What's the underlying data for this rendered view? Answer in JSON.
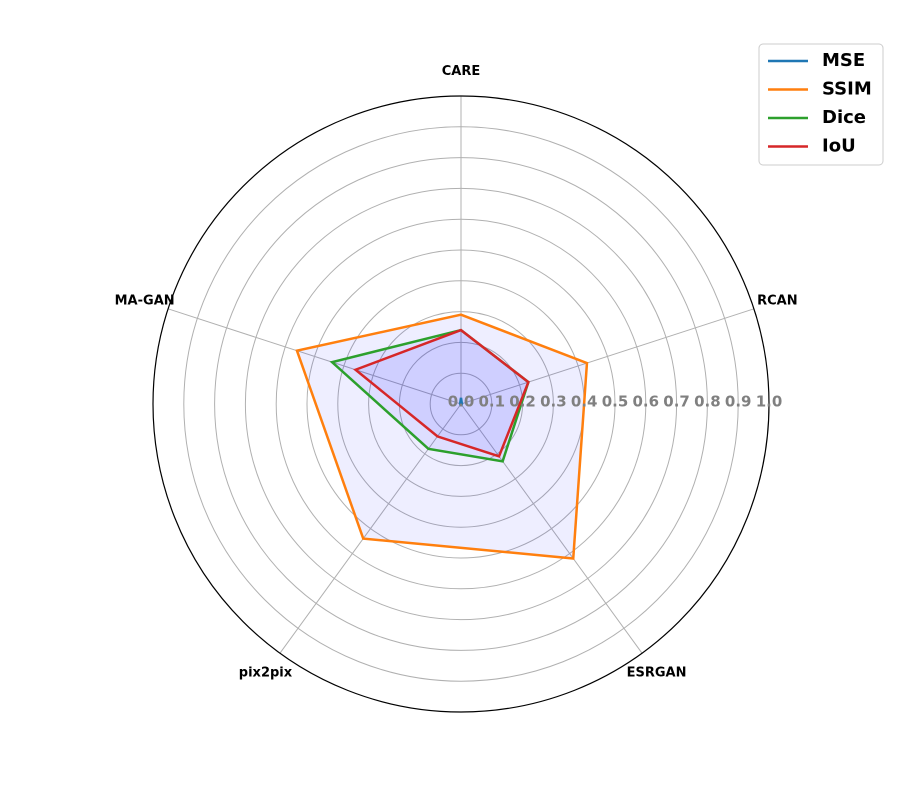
{
  "chart_data": {
    "type": "radar",
    "categories": [
      "CARE",
      "RCAN",
      "ESRGAN",
      "pix2pix",
      "MA-GAN"
    ],
    "series": [
      {
        "name": "MSE",
        "color": "#1f77b4",
        "values": [
          0.02,
          0.003,
          0.003,
          0.003,
          0.003
        ]
      },
      {
        "name": "SSIM",
        "color": "#ff7f0e",
        "values": [
          0.29,
          0.43,
          0.62,
          0.54,
          0.56
        ]
      },
      {
        "name": "Dice",
        "color": "#2ca02c",
        "values": [
          0.24,
          0.23,
          0.23,
          0.18,
          0.44
        ]
      },
      {
        "name": "IoU",
        "color": "#d62728",
        "values": [
          0.24,
          0.23,
          0.21,
          0.13,
          0.36
        ]
      }
    ],
    "rlim": [
      0,
      1.0
    ],
    "rticks": [
      "0.0",
      "0.1",
      "0.2",
      "0.3",
      "0.4",
      "0.5",
      "0.6",
      "0.7",
      "0.8",
      "0.9",
      "1.0"
    ],
    "grid": true,
    "legend": "top-right",
    "fill_color": "#0000ff"
  }
}
